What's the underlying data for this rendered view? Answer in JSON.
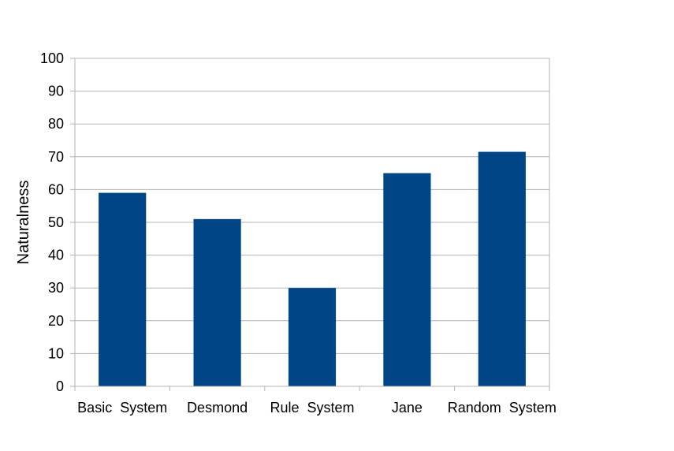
{
  "chart_data": {
    "type": "bar",
    "title": "",
    "xlabel": "",
    "ylabel": "Naturalness",
    "categories": [
      "Basic  System",
      "Desmond",
      "Rule  System",
      "Jane",
      "Random  System"
    ],
    "series": [
      {
        "values": [
          59,
          51,
          30,
          65,
          71.5
        ]
      }
    ],
    "ylim": [
      0,
      100
    ],
    "yticks": [
      "0",
      "10",
      "20",
      "30",
      "40",
      "50",
      "60",
      "70",
      "80",
      "90",
      "100"
    ],
    "grid": true,
    "legend": "none",
    "colors": {
      "bar": "#004586",
      "grid": "#b3b3b3",
      "axis": "#b3b3b3"
    }
  }
}
